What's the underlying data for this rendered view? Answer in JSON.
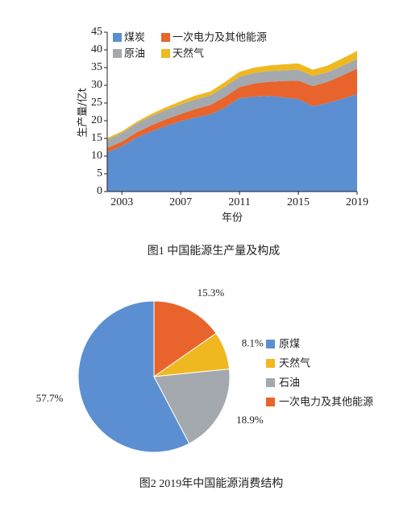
{
  "chart_data": [
    {
      "type": "area",
      "stacked": true,
      "caption": "图1 中国能源生产量及构成",
      "x_label": "年份",
      "y_label": "生产量/亿t",
      "x": [
        2002,
        2003,
        2004,
        2005,
        2006,
        2007,
        2008,
        2009,
        2010,
        2011,
        2012,
        2013,
        2014,
        2015,
        2016,
        2017,
        2018,
        2019
      ],
      "series": [
        {
          "name": "煤炭",
          "color": "#5b8fd1",
          "values": [
            11.1,
            12.8,
            15.2,
            17.0,
            18.5,
            19.9,
            20.9,
            21.8,
            23.7,
            26.4,
            26.8,
            27.0,
            26.6,
            26.1,
            24.1,
            25.0,
            26.2,
            27.5
          ]
        },
        {
          "name": "一次电力及其他能源",
          "color": "#e8642c",
          "values": [
            1.2,
            1.3,
            1.5,
            1.7,
            1.9,
            2.0,
            2.4,
            2.6,
            3.0,
            3.1,
            3.7,
            4.0,
            4.6,
            5.2,
            5.7,
            6.0,
            6.6,
            7.2
          ]
        },
        {
          "name": "原油",
          "color": "#a3a9ae",
          "values": [
            2.4,
            2.4,
            2.5,
            2.6,
            2.6,
            2.7,
            2.7,
            2.7,
            2.9,
            2.9,
            3.0,
            3.0,
            3.0,
            3.1,
            2.8,
            2.7,
            2.7,
            2.7
          ]
        },
        {
          "name": "天然气",
          "color": "#f0b820",
          "values": [
            0.4,
            0.5,
            0.5,
            0.6,
            0.8,
            0.9,
            1.1,
            1.1,
            1.3,
            1.4,
            1.5,
            1.6,
            1.7,
            1.8,
            1.8,
            1.9,
            2.1,
            2.3
          ]
        }
      ],
      "xlim": [
        2002,
        2019
      ],
      "xticks": [
        2003,
        2007,
        2011,
        2015,
        2019
      ],
      "ylim": [
        0,
        45
      ],
      "yticks": [
        0,
        5,
        10,
        15,
        20,
        25,
        30,
        35,
        40,
        45
      ]
    },
    {
      "type": "pie",
      "caption": "图2 2019年中国能源消费结构",
      "categories": [
        "一次电力及其他能源",
        "天然气",
        "石油",
        "原煤"
      ],
      "values": [
        15.3,
        8.1,
        18.9,
        57.7
      ],
      "value_labels": [
        "15.3%",
        "8.1%",
        "18.9%",
        "57.7%"
      ],
      "colors": [
        "#e8642c",
        "#f0b820",
        "#a3a9ae",
        "#5b8fd1"
      ]
    }
  ]
}
